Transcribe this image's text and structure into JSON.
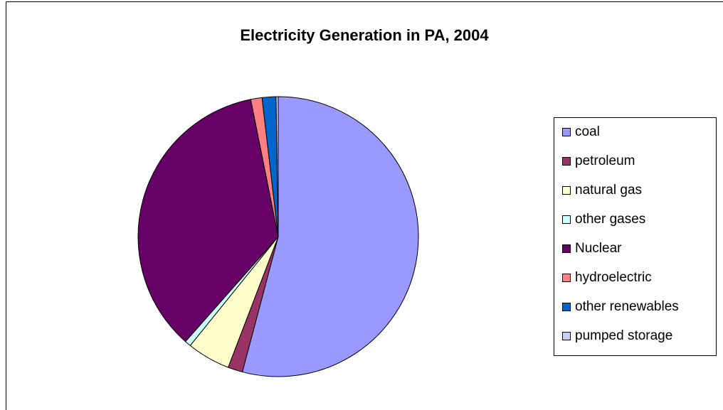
{
  "chart_data": {
    "type": "pie",
    "title": "Electricity Generation in PA, 2004",
    "categories": [
      "coal",
      "petroleum",
      "natural gas",
      "other gases",
      "Nuclear",
      "hydroelectric",
      "other renewables",
      "pumped storage"
    ],
    "values": [
      54.2,
      1.7,
      5.0,
      0.7,
      35.4,
      1.3,
      1.6,
      0.25
    ],
    "colors": [
      "#9999ff",
      "#993366",
      "#ffffcc",
      "#ccffff",
      "#660066",
      "#ff8080",
      "#0066cc",
      "#ccccff"
    ],
    "legend": "right"
  }
}
